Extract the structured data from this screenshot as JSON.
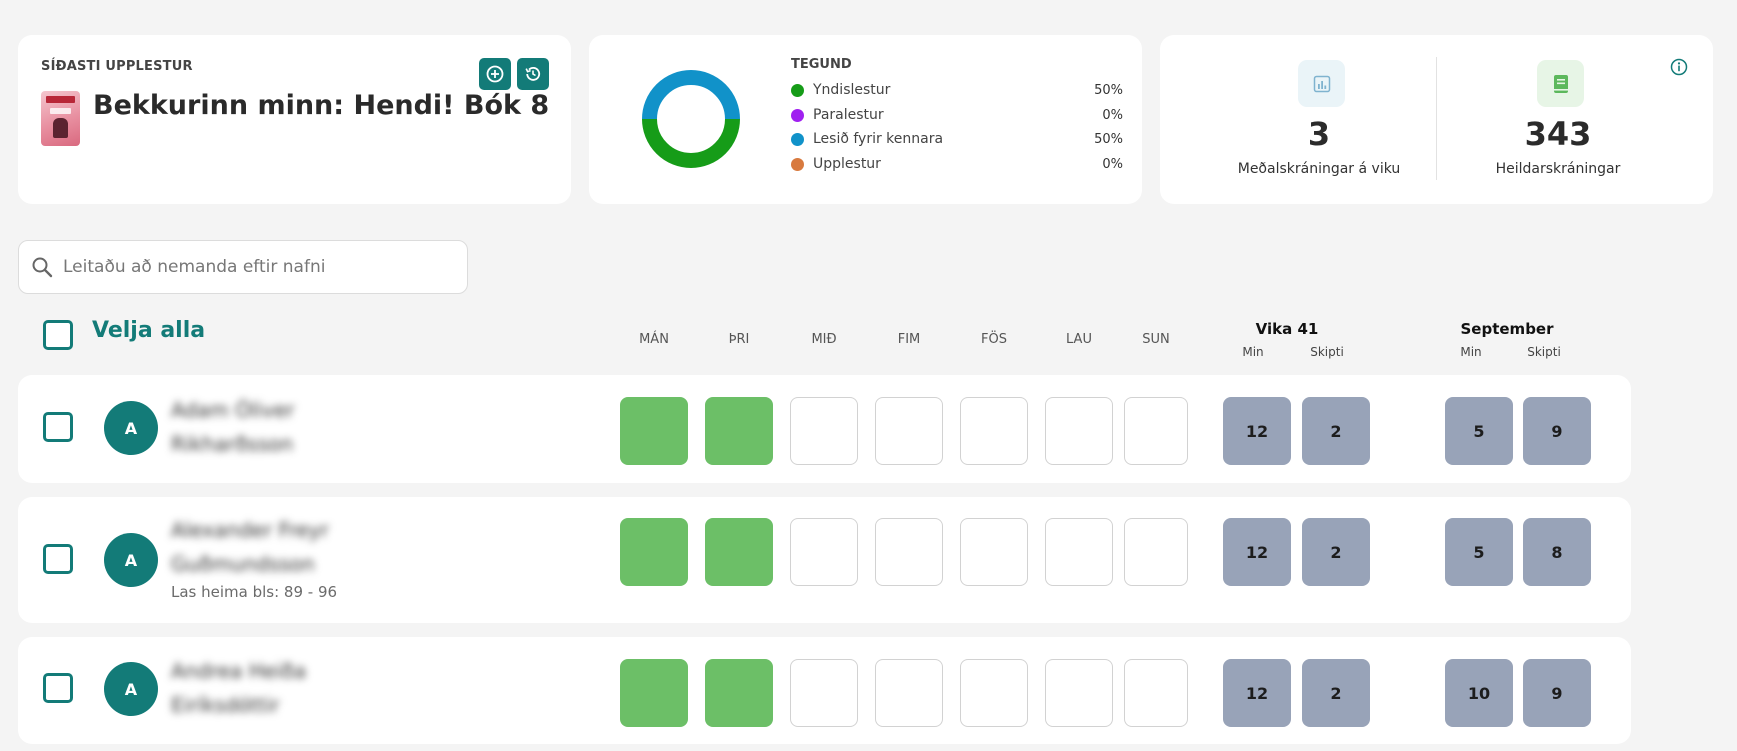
{
  "recent": {
    "title": "SÍÐASTI UPPLESTUR",
    "book_title": "Bekkurinn minn: Hendi! Bók 8",
    "add_icon": "plus-circle-icon",
    "history_icon": "history-icon"
  },
  "types": {
    "title": "TEGUND",
    "items": [
      {
        "label": "Yndislestur",
        "pct": "50%",
        "color": "#169c18"
      },
      {
        "label": "Paralestur",
        "pct": "0%",
        "color": "#a020f0"
      },
      {
        "label": "Lesið fyrir kennara",
        "pct": "50%",
        "color": "#1192c9"
      },
      {
        "label": "Upplestur",
        "pct": "0%",
        "color": "#d87a3f"
      }
    ]
  },
  "stats": {
    "weekly_value": "3",
    "weekly_label": "Meðalskráningar á viku",
    "weekly_icon": "bar-chart-icon",
    "total_value": "343",
    "total_label": "Heildarskráningar",
    "total_icon": "book-icon",
    "info_icon": "info-icon"
  },
  "search": {
    "placeholder": "Leitaðu að nemanda eftir nafni",
    "icon": "search-icon"
  },
  "table": {
    "select_all": "Velja alla",
    "days": [
      "MÁN",
      "ÞRI",
      "MIÐ",
      "FIM",
      "FÖS",
      "LAU",
      "SUN"
    ],
    "week_title": "Vika 41",
    "month_title": "September",
    "min_label": "Min",
    "times_label": "Skipti"
  },
  "students": [
    {
      "initial": "A",
      "first": "Adam Óliver",
      "last": "Rikharðsson",
      "note": "",
      "days": [
        true,
        true,
        false,
        false,
        false,
        false,
        false
      ],
      "week_min": "12",
      "week_times": "2",
      "month_min": "5",
      "month_times": "9"
    },
    {
      "initial": "A",
      "first": "Alexander Freyr",
      "last": "Guðmundsson",
      "note": "Las heima bls: 89  - 96",
      "days": [
        true,
        true,
        false,
        false,
        false,
        false,
        false
      ],
      "week_min": "12",
      "week_times": "2",
      "month_min": "5",
      "month_times": "8"
    },
    {
      "initial": "A",
      "first": "Andrea Heiða",
      "last": "Eiríksdóttir",
      "note": "",
      "days": [
        true,
        true,
        false,
        false,
        false,
        false,
        false
      ],
      "week_min": "12",
      "week_times": "2",
      "month_min": "10",
      "month_times": "9"
    }
  ]
}
